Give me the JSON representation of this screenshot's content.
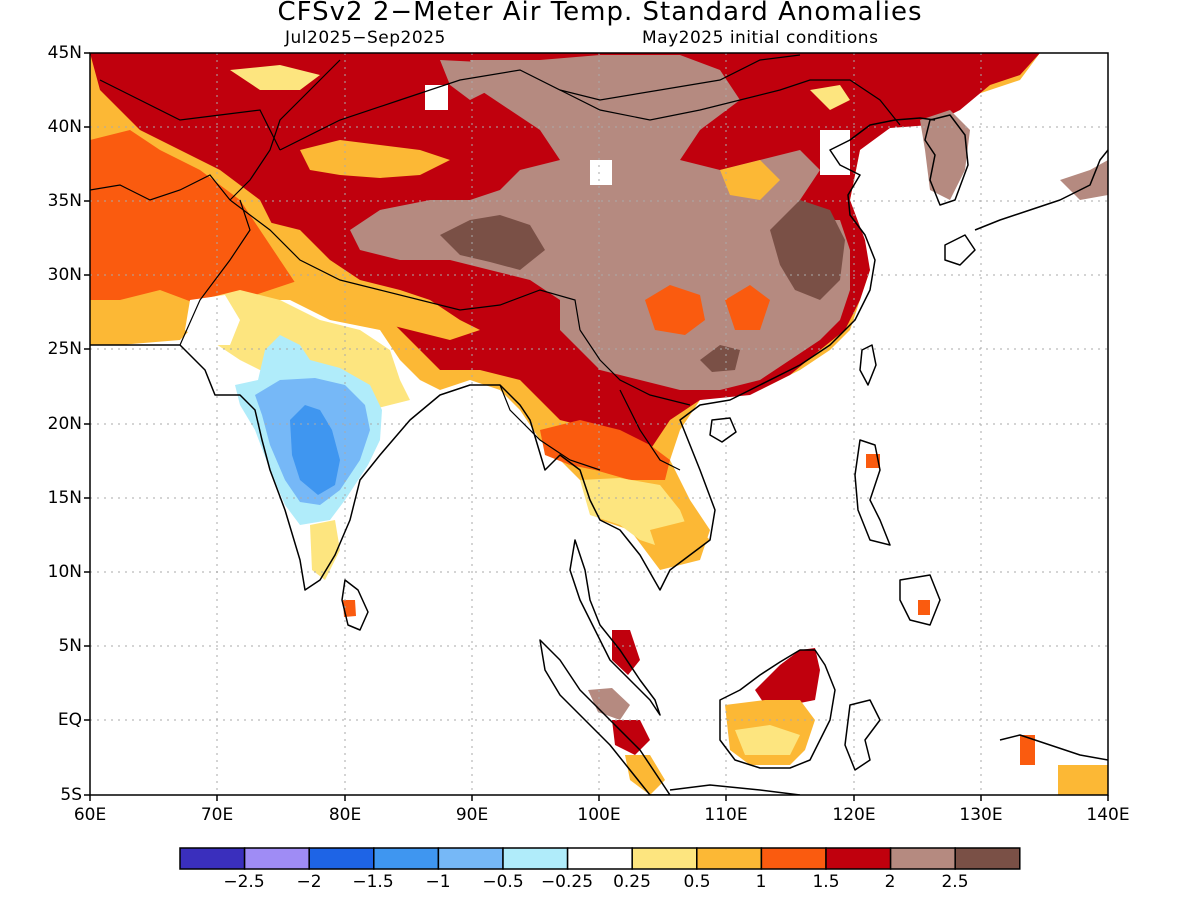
{
  "title": "CFSv2 2−Meter Air Temp. Standard Anomalies",
  "subtitle_left": "Jul2025−Sep2025",
  "subtitle_right": "May2025 initial conditions",
  "lat_labels": [
    "45N",
    "40N",
    "35N",
    "30N",
    "25N",
    "20N",
    "15N",
    "10N",
    "5N",
    "EQ",
    "5S"
  ],
  "lon_labels": [
    "60E",
    "70E",
    "80E",
    "90E",
    "100E",
    "110E",
    "120E",
    "130E",
    "140E"
  ],
  "colorbar": {
    "colors": [
      "#3a2fbd",
      "#9f8cf5",
      "#1e64e6",
      "#3f96f0",
      "#76b8f7",
      "#b0ecfa",
      "#ffffff",
      "#fde57f",
      "#fcb835",
      "#fa5b0f",
      "#c0000d",
      "#b58a80",
      "#7a5046"
    ],
    "labels": [
      "−2.5",
      "−2",
      "−1.5",
      "−1",
      "−0.5",
      "−0.25",
      "0.25",
      "0.5",
      "1",
      "1.5",
      "2",
      "2.5"
    ]
  },
  "colors": {
    "deep_brown": "#7a5046",
    "light_brown": "#b58a80",
    "dark_red": "#c0000d",
    "orange_red": "#fa5b0f",
    "orange": "#fcb835",
    "light_yellow": "#fde57f",
    "light_cyan": "#b0ecfa",
    "light_blue": "#76b8f7",
    "mid_blue": "#3f96f0"
  }
}
